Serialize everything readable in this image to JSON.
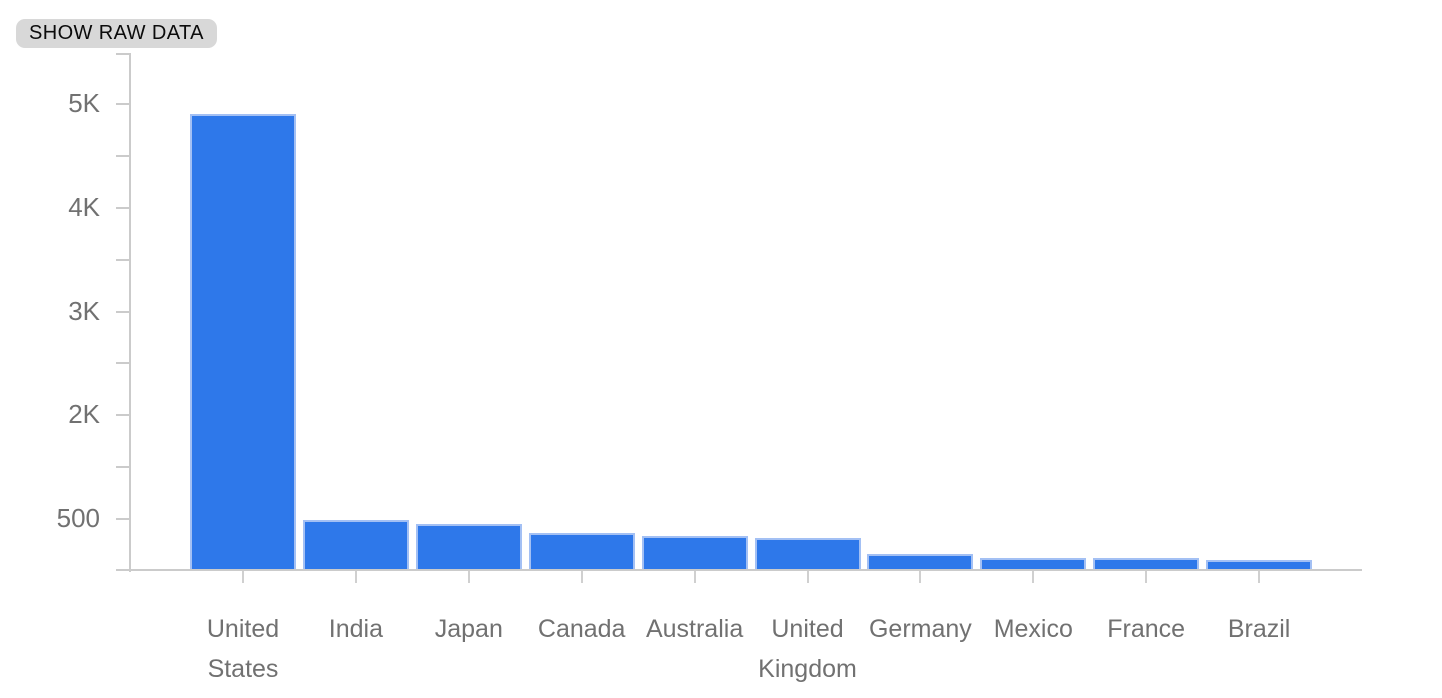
{
  "controls": {
    "show_raw_data_label": "SHOW RAW DATA"
  },
  "chart_data": {
    "type": "bar",
    "title": "",
    "xlabel": "",
    "ylabel": "",
    "categories": [
      "United States",
      "India",
      "Japan",
      "Canada",
      "Australia",
      "United Kingdom",
      "Germany",
      "Mexico",
      "France",
      "Brazil"
    ],
    "values": [
      4900,
      490,
      450,
      360,
      330,
      310,
      150,
      110,
      108,
      95
    ],
    "y_ticks": [
      {
        "label": "5K",
        "value": 5000
      },
      {
        "label": "4K",
        "value": 4000
      },
      {
        "label": "3K",
        "value": 3000
      },
      {
        "label": "2K",
        "value": 2000
      },
      {
        "label": "500",
        "value": 500
      }
    ],
    "ylim": [
      0,
      5000
    ],
    "grid": false,
    "legend": "none",
    "layout_notes": "labeled y ticks evenly spaced with one unlabeled minor tick between each; single blue series on white background",
    "colors": {
      "bar_fill": "#2e78ea",
      "bar_edge": "#a3c0f4",
      "axis_line": "#cbcbcb",
      "tick_text": "#717171",
      "chip_background": "#d8d8d8",
      "chip_text": "#0b0b0b"
    }
  }
}
